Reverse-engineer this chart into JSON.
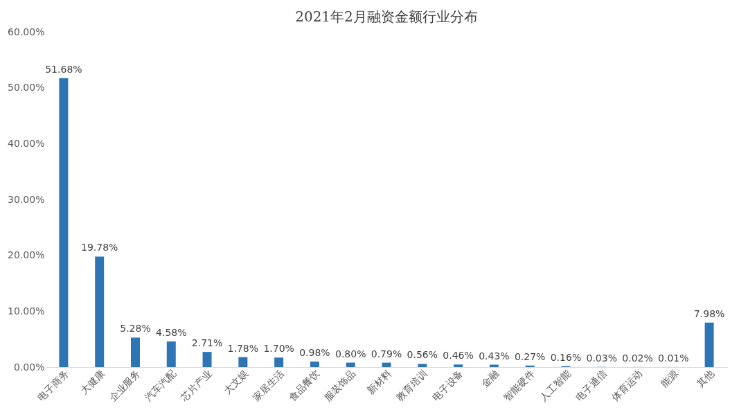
{
  "chart_data": {
    "type": "bar",
    "title": "2021年2月融资金额行业分布",
    "categories": [
      "电子商务",
      "大健康",
      "企业服务",
      "汽车汽配",
      "芯片产业",
      "大文娱",
      "家居生活",
      "食品餐饮",
      "服装饰品",
      "新材料",
      "教育培训",
      "电子设备",
      "金融",
      "智能硬件",
      "人工智能",
      "电子通信",
      "体育运动",
      "能源",
      "其他"
    ],
    "values": [
      51.68,
      19.78,
      5.28,
      4.58,
      2.71,
      1.78,
      1.7,
      0.98,
      0.8,
      0.79,
      0.56,
      0.46,
      0.43,
      0.27,
      0.16,
      0.03,
      0.02,
      0.01,
      7.98
    ],
    "value_labels": [
      "51.68%",
      "19.78%",
      "5.28%",
      "4.58%",
      "2.71%",
      "1.78%",
      "1.70%",
      "0.98%",
      "0.80%",
      "0.79%",
      "0.56%",
      "0.46%",
      "0.43%",
      "0.27%",
      "0.16%",
      "0.03%",
      "0.02%",
      "0.01%",
      "7.98%"
    ],
    "color": "#2e75b6",
    "ylim": [
      0,
      60
    ],
    "yticks": [
      {
        "value": 0,
        "label": "0.00%"
      },
      {
        "value": 10,
        "label": "10.00%"
      },
      {
        "value": 20,
        "label": "20.00%"
      },
      {
        "value": 30,
        "label": "30.00%"
      },
      {
        "value": 40,
        "label": "40.00%"
      },
      {
        "value": 50,
        "label": "50.00%"
      },
      {
        "value": 60,
        "label": "60.00%"
      }
    ],
    "grid": false
  }
}
